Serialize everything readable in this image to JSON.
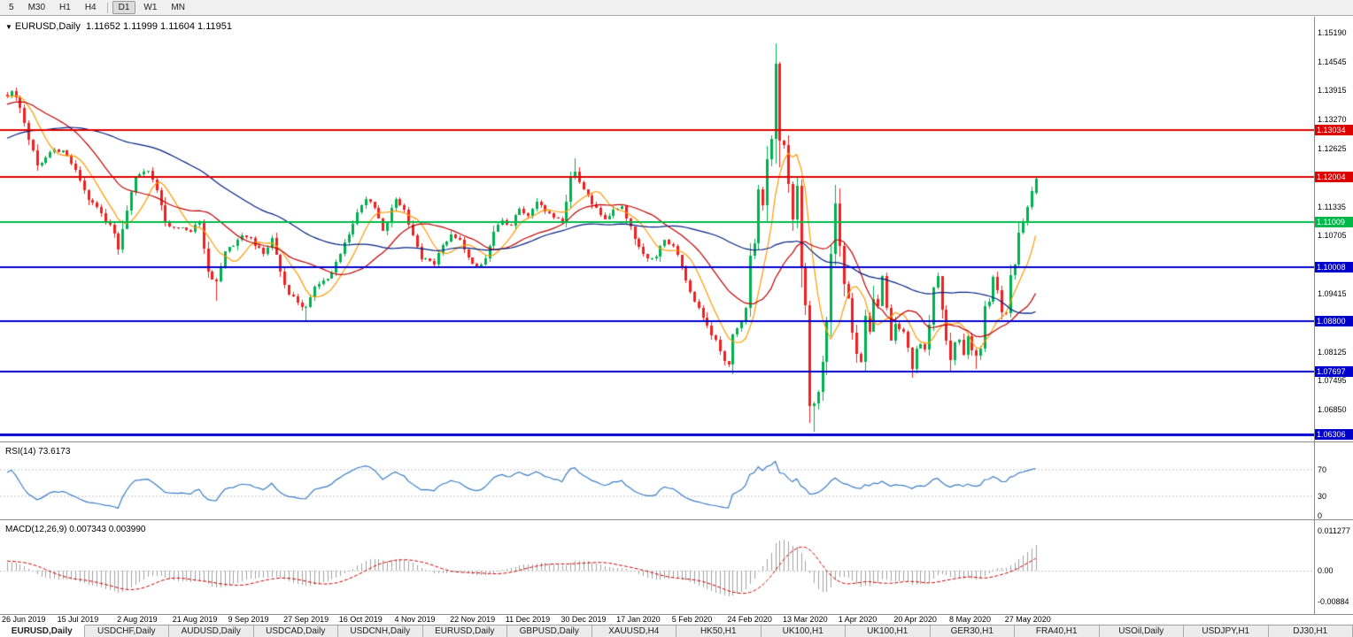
{
  "icons": {
    "dropdown": "▼"
  },
  "toolbar": {
    "timeframes": [
      "5",
      "M30",
      "H1",
      "H4",
      "D1",
      "W1",
      "MN"
    ],
    "active": "D1",
    "separator_before": "D1"
  },
  "chart_data": {
    "type": "candlestick",
    "symbol": "EURUSD,Daily",
    "ohlc_text": "1.11652 1.11999 1.11604 1.11951",
    "open": "1.11652",
    "high": "1.11999",
    "low": "1.11604",
    "close": "1.11951",
    "bars_total": 242,
    "y_range": [
      1.06145,
      1.15542
    ],
    "y_ticks": [
      [
        1.1519,
        "1.15190"
      ],
      [
        1.14545,
        "1.14545"
      ],
      [
        1.13915,
        "1.13915"
      ],
      [
        1.1327,
        "1.13270"
      ],
      [
        1.12625,
        "1.12625"
      ],
      [
        1.11335,
        "1.11335"
      ],
      [
        1.10705,
        "1.10705"
      ],
      [
        1.09415,
        "1.09415"
      ],
      [
        1.08125,
        "1.08125"
      ],
      [
        1.07495,
        "1.07495"
      ],
      [
        1.0685,
        "1.06850"
      ]
    ],
    "hlines": [
      {
        "price": 1.13034,
        "label": "1.13034",
        "color": "#dd0000",
        "width": 2
      },
      {
        "price": 1.12004,
        "label": "1.12004",
        "color": "#dd0000",
        "width": 2
      },
      {
        "price": 1.11009,
        "label": "1.11009",
        "color": "#00b84a",
        "width": 2
      },
      {
        "price": 1.10008,
        "label": "1.10008",
        "color": "#0000cc",
        "width": 2
      },
      {
        "price": 1.088,
        "label": "1.08800",
        "color": "#0000cc",
        "width": 2
      },
      {
        "price": 1.07697,
        "label": "1.07697",
        "color": "#0000cc",
        "width": 2
      },
      {
        "price": 1.06306,
        "label": "1.06306",
        "color": "#0000cc",
        "width": 3
      }
    ],
    "x_axis_dates": [
      [
        "26 Jun 2019",
        0
      ],
      [
        "15 Jul 2019",
        13
      ],
      [
        "2 Aug 2019",
        27
      ],
      [
        "21 Aug 2019",
        40
      ],
      [
        "9 Sep 2019",
        53
      ],
      [
        "27 Sep 2019",
        66
      ],
      [
        "16 Oct 2019",
        79
      ],
      [
        "4 Nov 2019",
        92
      ],
      [
        "22 Nov 2019",
        105
      ],
      [
        "11 Dec 2019",
        118
      ],
      [
        "30 Dec 2019",
        131
      ],
      [
        "17 Jan 2020",
        144
      ],
      [
        "5 Feb 2020",
        157
      ],
      [
        "24 Feb 2020",
        170
      ],
      [
        "13 Mar 2020",
        183
      ],
      [
        "1 Apr 2020",
        196
      ],
      [
        "20 Apr 2020",
        209
      ],
      [
        "8 May 2020",
        222
      ],
      [
        "27 May 2020",
        235
      ]
    ],
    "close_anchors": [
      [
        0,
        1.1378
      ],
      [
        1,
        1.139
      ],
      [
        3,
        1.1352
      ],
      [
        5,
        1.1283
      ],
      [
        7,
        1.1225
      ],
      [
        10,
        1.1254
      ],
      [
        13,
        1.1258
      ],
      [
        16,
        1.1215
      ],
      [
        19,
        1.1148
      ],
      [
        22,
        1.112
      ],
      [
        25,
        1.1075
      ],
      [
        26,
        1.104
      ],
      [
        28,
        1.1125
      ],
      [
        30,
        1.1202
      ],
      [
        33,
        1.1213
      ],
      [
        35,
        1.117
      ],
      [
        37,
        1.1098
      ],
      [
        40,
        1.1086
      ],
      [
        43,
        1.1078
      ],
      [
        45,
        1.11
      ],
      [
        47,
        1.099
      ],
      [
        49,
        1.0968
      ],
      [
        51,
        1.1035
      ],
      [
        53,
        1.1047
      ],
      [
        55,
        1.107
      ],
      [
        57,
        1.1064
      ],
      [
        60,
        1.103
      ],
      [
        62,
        1.1065
      ],
      [
        64,
        1.099
      ],
      [
        66,
        1.094
      ],
      [
        68,
        1.0922
      ],
      [
        70,
        1.0912
      ],
      [
        72,
        1.0958
      ],
      [
        74,
        1.097
      ],
      [
        76,
        1.0988
      ],
      [
        78,
        1.103
      ],
      [
        80,
        1.1073
      ],
      [
        82,
        1.1122
      ],
      [
        84,
        1.115
      ],
      [
        86,
        1.1132
      ],
      [
        88,
        1.108
      ],
      [
        91,
        1.115
      ],
      [
        93,
        1.1127
      ],
      [
        95,
        1.107
      ],
      [
        97,
        1.1017
      ],
      [
        100,
        1.1007
      ],
      [
        102,
        1.105
      ],
      [
        104,
        1.1073
      ],
      [
        106,
        1.106
      ],
      [
        108,
        1.1021
      ],
      [
        110,
        1.1001
      ],
      [
        112,
        1.102
      ],
      [
        114,
        1.1078
      ],
      [
        116,
        1.1104
      ],
      [
        118,
        1.1093
      ],
      [
        120,
        1.113
      ],
      [
        122,
        1.1113
      ],
      [
        124,
        1.1145
      ],
      [
        126,
        1.1123
      ],
      [
        128,
        1.111
      ],
      [
        130,
        1.1098
      ],
      [
        132,
        1.1199
      ],
      [
        133,
        1.1212
      ],
      [
        135,
        1.1172
      ],
      [
        137,
        1.114
      ],
      [
        140,
        1.1106
      ],
      [
        142,
        1.1128
      ],
      [
        144,
        1.1136
      ],
      [
        146,
        1.109
      ],
      [
        148,
        1.1045
      ],
      [
        150,
        1.1019
      ],
      [
        152,
        1.1023
      ],
      [
        154,
        1.106
      ],
      [
        156,
        1.1048
      ],
      [
        158,
        1.1
      ],
      [
        160,
        1.0946
      ],
      [
        162,
        1.0911
      ],
      [
        164,
        1.087
      ],
      [
        166,
        1.084
      ],
      [
        168,
        1.0792
      ],
      [
        169,
        1.0785
      ],
      [
        170,
        1.0851
      ],
      [
        172,
        1.088
      ],
      [
        173,
        1.091
      ],
      [
        174,
        1.1026
      ],
      [
        175,
        1.1053
      ],
      [
        176,
        1.1173
      ],
      [
        177,
        1.1137
      ],
      [
        178,
        1.1239
      ],
      [
        179,
        1.1284
      ],
      [
        180,
        1.145
      ],
      [
        181,
        1.1281
      ],
      [
        182,
        1.127
      ],
      [
        183,
        1.1184
      ],
      [
        184,
        1.1105
      ],
      [
        185,
        1.1181
      ],
      [
        186,
        1.0999
      ],
      [
        187,
        1.0916
      ],
      [
        188,
        1.0692
      ],
      [
        189,
        1.0698
      ],
      [
        190,
        1.0725
      ],
      [
        191,
        1.079
      ],
      [
        192,
        1.0883
      ],
      [
        193,
        1.103
      ],
      [
        194,
        1.1141
      ],
      [
        195,
        1.1047
      ],
      [
        196,
        1.0963
      ],
      [
        197,
        1.0932
      ],
      [
        198,
        1.0855
      ],
      [
        199,
        1.0808
      ],
      [
        200,
        1.0791
      ],
      [
        201,
        1.0892
      ],
      [
        202,
        1.0858
      ],
      [
        203,
        1.093
      ],
      [
        204,
        1.0915
      ],
      [
        205,
        1.098
      ],
      [
        206,
        1.091
      ],
      [
        207,
        1.0838
      ],
      [
        208,
        1.0875
      ],
      [
        209,
        1.0863
      ],
      [
        210,
        1.0857
      ],
      [
        211,
        1.0822
      ],
      [
        212,
        1.0775
      ],
      [
        213,
        1.082
      ],
      [
        214,
        1.083
      ],
      [
        215,
        1.0818
      ],
      [
        216,
        1.0873
      ],
      [
        217,
        1.0955
      ],
      [
        218,
        1.098
      ],
      [
        219,
        1.0906
      ],
      [
        220,
        1.0837
      ],
      [
        221,
        1.0795
      ],
      [
        222,
        1.0833
      ],
      [
        223,
        1.0839
      ],
      [
        224,
        1.0807
      ],
      [
        225,
        1.0848
      ],
      [
        226,
        1.0817
      ],
      [
        227,
        1.0804
      ],
      [
        228,
        1.082
      ],
      [
        229,
        1.0915
      ],
      [
        230,
        1.0924
      ],
      [
        231,
        1.0978
      ],
      [
        232,
        1.095
      ],
      [
        233,
        1.0901
      ],
      [
        234,
        1.0898
      ],
      [
        235,
        1.0983
      ],
      [
        236,
        1.1007
      ],
      [
        237,
        1.1077
      ],
      [
        238,
        1.1101
      ],
      [
        239,
        1.1134
      ],
      [
        240,
        1.1168
      ],
      [
        241,
        1.1195
      ]
    ],
    "overrides": {
      "26": {
        "l": 1.1027
      },
      "49": {
        "l": 1.0926
      },
      "70": {
        "l": 1.0879
      },
      "133": {
        "h": 1.124
      },
      "169": {
        "l": 1.0778
      },
      "180": {
        "h": 1.1495
      },
      "188": {
        "l": 1.0655
      },
      "189": {
        "l": 1.0636
      },
      "212": {
        "l": 1.0756
      },
      "221": {
        "l": 1.0767
      },
      "227": {
        "l": 1.0775
      },
      "241": {
        "o": 1.11652,
        "h": 1.11999,
        "l": 1.11604,
        "c": 1.11951
      }
    },
    "colors": {
      "up": "#00b050",
      "down": "#f02020",
      "ma_fast": "#ff9900",
      "ma_mid": "#c00000",
      "ma_slow": "#002080"
    },
    "ma_periods": [
      8,
      21,
      55
    ]
  },
  "rsi": {
    "title": "RSI(14) 73.6173",
    "period": 14,
    "levels": [
      [
        70,
        "70"
      ],
      [
        30,
        "30"
      ],
      [
        0,
        "0"
      ]
    ],
    "color": "#3b7dc4",
    "level_color": "#c4c4c4"
  },
  "macd": {
    "title": "MACD(12,26,9) 0.007343 0.003990",
    "fast": 12,
    "slow": 26,
    "signal": 9,
    "labels": [
      [
        0.011277,
        "0.011277"
      ],
      [
        0,
        "0.00"
      ],
      [
        -0.00884,
        "-0.00884"
      ]
    ],
    "hist_color": "#a0a0a0",
    "signal_color": "#cc0000",
    "zero_color": "#c4c4c4"
  },
  "tabs": {
    "items": [
      "EURUSD,Daily",
      "USDCHF,Daily",
      "AUDUSD,Daily",
      "USDCAD,Daily",
      "USDCNH,Daily",
      "EURUSD,Daily",
      "GBPUSD,Daily",
      "XAUUSD,H4",
      "HK50,H1",
      "UK100,H1",
      "UK100,H1",
      "GER30,H1",
      "FRA40,H1",
      "USOil,Daily",
      "USDJPY,H1",
      "DJ30,H1"
    ],
    "active_index": 0
  }
}
